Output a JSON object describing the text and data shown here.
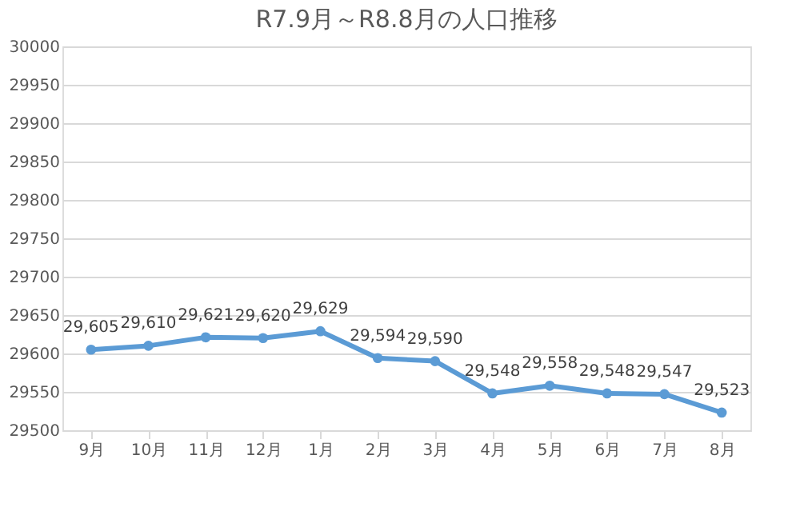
{
  "chart_data": {
    "type": "line",
    "title": "R7.9月～R8.8月の人口推移",
    "categories": [
      "9月",
      "10月",
      "11月",
      "12月",
      "1月",
      "2月",
      "3月",
      "4月",
      "5月",
      "6月",
      "7月",
      "8月"
    ],
    "series": [
      {
        "color": "#5b9bd5",
        "values": [
          29605,
          29610,
          29621,
          29620,
          29629,
          29594,
          29590,
          29548,
          29558,
          29548,
          29547,
          29523
        ]
      }
    ],
    "ylim": [
      29500,
      30000
    ],
    "yticks": [
      29500,
      29550,
      29600,
      29650,
      29700,
      29750,
      29800,
      29850,
      29900,
      29950,
      30000
    ],
    "value_labels": [
      "29,605",
      "29,610",
      "29,621",
      "29,620",
      "29,629",
      "29,594",
      "29,590",
      "29,548",
      "29,558",
      "29,548",
      "29,547",
      "29,523"
    ],
    "grid": "y",
    "marker": "circle",
    "line_style": "solid"
  }
}
